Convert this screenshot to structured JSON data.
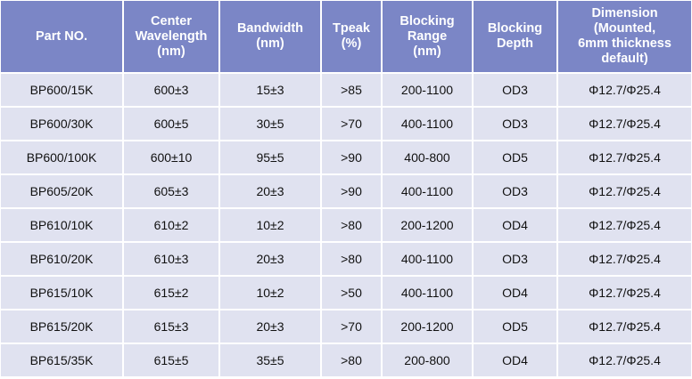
{
  "colors": {
    "header_bg": "#7b86c6",
    "row_bg": "#e0e2f0"
  },
  "headers": [
    "Part NO.",
    "Center\nWavelength\n(nm)",
    "Bandwidth\n(nm)",
    "Tpeak\n(%)",
    "Blocking\nRange\n(nm)",
    "Blocking\nDepth",
    "Dimension\n(Mounted,\n6mm thickness\ndefault)"
  ],
  "rows": [
    [
      "BP600/15K",
      "600±3",
      "15±3",
      ">85",
      "200-1100",
      "OD3",
      "Φ12.7/Φ25.4"
    ],
    [
      "BP600/30K",
      "600±5",
      "30±5",
      ">70",
      "400-1100",
      "OD3",
      "Φ12.7/Φ25.4"
    ],
    [
      "BP600/100K",
      "600±10",
      "95±5",
      ">90",
      "400-800",
      "OD5",
      "Φ12.7/Φ25.4"
    ],
    [
      "BP605/20K",
      "605±3",
      "20±3",
      ">90",
      "400-1100",
      "OD3",
      "Φ12.7/Φ25.4"
    ],
    [
      "BP610/10K",
      "610±2",
      "10±2",
      ">80",
      "200-1200",
      "OD4",
      "Φ12.7/Φ25.4"
    ],
    [
      "BP610/20K",
      "610±3",
      "20±3",
      ">80",
      "400-1100",
      "OD3",
      "Φ12.7/Φ25.4"
    ],
    [
      "BP615/10K",
      "615±2",
      "10±2",
      ">50",
      "400-1100",
      "OD4",
      "Φ12.7/Φ25.4"
    ],
    [
      "BP615/20K",
      "615±3",
      "20±3",
      ">70",
      "200-1200",
      "OD5",
      "Φ12.7/Φ25.4"
    ],
    [
      "BP615/35K",
      "615±5",
      "35±5",
      ">80",
      "200-800",
      "OD4",
      "Φ12.7/Φ25.4"
    ]
  ]
}
